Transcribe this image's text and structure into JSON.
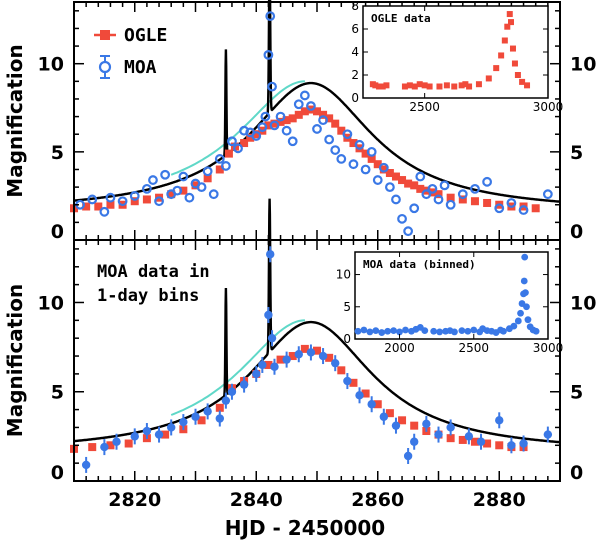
{
  "colors": {
    "ogle": "#f04a3a",
    "moa": "#3a78e6",
    "model": "#000000",
    "alt_model": "#5fd8c8"
  },
  "xlabel": "HJD - 2450000",
  "ylabel": "Magnification",
  "legend": {
    "ogle": "OGLE",
    "moa": "MOA"
  },
  "panel_text_line1": "MOA data in",
  "panel_text_line2": "1-day bins",
  "chart_data": [
    {
      "type": "scatter",
      "panel": "top",
      "xlim": [
        2810,
        2890
      ],
      "ylim": [
        0,
        13.5
      ],
      "x_ticks": [
        2820,
        2840,
        2860,
        2880
      ],
      "y_ticks": [
        0,
        5,
        10
      ],
      "ylabel": "Magnification",
      "legend": [
        "OGLE",
        "MOA"
      ],
      "series": [
        {
          "name": "OGLE",
          "points": [
            [
              2810,
              1.8
            ],
            [
              2812,
              1.9
            ],
            [
              2814,
              1.9
            ],
            [
              2816,
              2.0
            ],
            [
              2818,
              2.0
            ],
            [
              2820,
              2.2
            ],
            [
              2822,
              2.3
            ],
            [
              2824,
              2.4
            ],
            [
              2826,
              2.6
            ],
            [
              2828,
              2.8
            ],
            [
              2830,
              3.1
            ],
            [
              2832,
              3.5
            ],
            [
              2834,
              4.0
            ],
            [
              2835.5,
              4.9
            ],
            [
              2836.5,
              5.3
            ],
            [
              2838,
              5.5
            ],
            [
              2839,
              5.8
            ],
            [
              2840,
              6.0
            ],
            [
              2841,
              6.2
            ],
            [
              2842,
              6.5
            ],
            [
              2843,
              6.6
            ],
            [
              2844,
              6.7
            ],
            [
              2845,
              6.8
            ],
            [
              2846,
              6.9
            ],
            [
              2847,
              7.1
            ],
            [
              2848,
              7.3
            ],
            [
              2849,
              7.4
            ],
            [
              2850,
              7.3
            ],
            [
              2851,
              7.1
            ],
            [
              2852,
              6.9
            ],
            [
              2853,
              6.6
            ],
            [
              2854,
              6.2
            ],
            [
              2855,
              5.8
            ],
            [
              2856,
              5.5
            ],
            [
              2857,
              5.2
            ],
            [
              2858,
              4.9
            ],
            [
              2859,
              4.6
            ],
            [
              2860,
              4.3
            ],
            [
              2861,
              4.0
            ],
            [
              2862,
              3.8
            ],
            [
              2863,
              3.6
            ],
            [
              2864,
              3.4
            ],
            [
              2865,
              3.2
            ],
            [
              2866,
              3.1
            ],
            [
              2867,
              2.9
            ],
            [
              2868,
              2.8
            ],
            [
              2869,
              2.7
            ],
            [
              2870,
              2.6
            ],
            [
              2872,
              2.4
            ],
            [
              2874,
              2.3
            ],
            [
              2876,
              2.2
            ],
            [
              2878,
              2.1
            ],
            [
              2880,
              2.0
            ],
            [
              2882,
              1.9
            ],
            [
              2884,
              1.9
            ],
            [
              2886,
              1.8
            ]
          ]
        },
        {
          "name": "MOA",
          "points": [
            [
              2811,
              2.0
            ],
            [
              2813,
              2.3
            ],
            [
              2815,
              1.6
            ],
            [
              2816,
              2.4
            ],
            [
              2818,
              2.2
            ],
            [
              2820,
              2.5
            ],
            [
              2822,
              2.9
            ],
            [
              2823,
              3.4
            ],
            [
              2824,
              2.2
            ],
            [
              2825,
              3.7
            ],
            [
              2826,
              2.6
            ],
            [
              2827,
              2.8
            ],
            [
              2828,
              3.6
            ],
            [
              2829,
              2.4
            ],
            [
              2830,
              3.2
            ],
            [
              2831,
              3.0
            ],
            [
              2832,
              3.9
            ],
            [
              2833,
              2.6
            ],
            [
              2834,
              4.6
            ],
            [
              2835,
              4.2
            ],
            [
              2836,
              5.6
            ],
            [
              2837,
              5.2
            ],
            [
              2838,
              6.2
            ],
            [
              2839,
              6.1
            ],
            [
              2840,
              5.9
            ],
            [
              2841,
              6.4
            ],
            [
              2841.5,
              7.0
            ],
            [
              2842,
              10.5
            ],
            [
              2842.3,
              12.7
            ],
            [
              2842.6,
              8.7
            ],
            [
              2843,
              6.5
            ],
            [
              2844,
              7.0
            ],
            [
              2845,
              6.2
            ],
            [
              2846,
              5.6
            ],
            [
              2847,
              7.7
            ],
            [
              2848,
              8.2
            ],
            [
              2849,
              7.6
            ],
            [
              2850,
              6.3
            ],
            [
              2851,
              6.8
            ],
            [
              2852,
              5.7
            ],
            [
              2853,
              5.1
            ],
            [
              2854,
              4.6
            ],
            [
              2855,
              6.0
            ],
            [
              2856,
              4.3
            ],
            [
              2857,
              5.4
            ],
            [
              2858,
              4.0
            ],
            [
              2859,
              5.0
            ],
            [
              2860,
              3.4
            ],
            [
              2861,
              4.1
            ],
            [
              2862,
              3.0
            ],
            [
              2863,
              2.3
            ],
            [
              2864,
              1.2
            ],
            [
              2865,
              0.5
            ],
            [
              2866,
              1.8
            ],
            [
              2867,
              3.6
            ],
            [
              2868,
              2.6
            ],
            [
              2869,
              2.9
            ],
            [
              2870,
              2.3
            ],
            [
              2871,
              3.1
            ],
            [
              2872,
              2.0
            ],
            [
              2874,
              2.6
            ],
            [
              2876,
              2.9
            ],
            [
              2878,
              3.3
            ],
            [
              2880,
              1.8
            ],
            [
              2882,
              2.1
            ],
            [
              2884,
              1.7
            ],
            [
              2888,
              2.6
            ]
          ]
        }
      ],
      "inset": {
        "title": "OGLE data",
        "xlim": [
          2250,
          3000
        ],
        "ylim": [
          0,
          8
        ],
        "x_ticks": [
          2500,
          3000
        ],
        "y_ticks": [
          0,
          2,
          4,
          6,
          8
        ],
        "points": [
          [
            2290,
            1.2
          ],
          [
            2300,
            1.1
          ],
          [
            2315,
            1.0
          ],
          [
            2330,
            1.0
          ],
          [
            2345,
            1.1
          ],
          [
            2420,
            1.0
          ],
          [
            2440,
            1.1
          ],
          [
            2460,
            1.0
          ],
          [
            2480,
            1.2
          ],
          [
            2500,
            1.1
          ],
          [
            2520,
            1.0
          ],
          [
            2560,
            1.0
          ],
          [
            2590,
            1.1
          ],
          [
            2620,
            1.0
          ],
          [
            2650,
            1.1
          ],
          [
            2665,
            1.2
          ],
          [
            2680,
            1.0
          ],
          [
            2720,
            1.2
          ],
          [
            2760,
            1.7
          ],
          [
            2790,
            2.6
          ],
          [
            2810,
            3.7
          ],
          [
            2825,
            5.0
          ],
          [
            2835,
            6.2
          ],
          [
            2845,
            7.3
          ],
          [
            2850,
            6.6
          ],
          [
            2858,
            4.3
          ],
          [
            2866,
            3.0
          ],
          [
            2878,
            2.0
          ],
          [
            2895,
            1.4
          ],
          [
            2915,
            1.1
          ]
        ]
      }
    },
    {
      "type": "scatter",
      "panel": "bottom",
      "xlim": [
        2810,
        2890
      ],
      "ylim": [
        0,
        13.5
      ],
      "x_ticks": [
        2820,
        2840,
        2860,
        2880
      ],
      "y_ticks": [
        0,
        5,
        10
      ],
      "xlabel": "HJD - 2450000",
      "ylabel": "Magnification",
      "series": [
        {
          "name": "OGLE",
          "points": [
            [
              2810,
              1.8
            ],
            [
              2813,
              1.9
            ],
            [
              2816,
              2.0
            ],
            [
              2819,
              2.1
            ],
            [
              2822,
              2.4
            ],
            [
              2825,
              2.6
            ],
            [
              2828,
              2.9
            ],
            [
              2831,
              3.4
            ],
            [
              2834,
              4.1
            ],
            [
              2836,
              5.2
            ],
            [
              2838,
              5.6
            ],
            [
              2840,
              6.0
            ],
            [
              2842,
              6.5
            ],
            [
              2844,
              6.8
            ],
            [
              2846,
              7.0
            ],
            [
              2848,
              7.4
            ],
            [
              2850,
              7.3
            ],
            [
              2852,
              6.9
            ],
            [
              2854,
              6.2
            ],
            [
              2856,
              5.5
            ],
            [
              2858,
              4.9
            ],
            [
              2860,
              4.3
            ],
            [
              2862,
              3.8
            ],
            [
              2864,
              3.4
            ],
            [
              2866,
              3.1
            ],
            [
              2868,
              2.8
            ],
            [
              2870,
              2.6
            ],
            [
              2872,
              2.4
            ],
            [
              2874,
              2.3
            ],
            [
              2876,
              2.2
            ],
            [
              2878,
              2.1
            ],
            [
              2880,
              2.0
            ],
            [
              2882,
              1.9
            ],
            [
              2884,
              1.9
            ]
          ]
        },
        {
          "name": "MOA",
          "points": [
            [
              2812,
              0.9
            ],
            [
              2815,
              1.9
            ],
            [
              2817,
              2.2
            ],
            [
              2820,
              2.5
            ],
            [
              2822,
              2.8
            ],
            [
              2824,
              2.6
            ],
            [
              2826,
              3.0
            ],
            [
              2828,
              3.3
            ],
            [
              2830,
              3.6
            ],
            [
              2832,
              3.9
            ],
            [
              2834,
              3.5
            ],
            [
              2835,
              4.5
            ],
            [
              2836,
              5.0
            ],
            [
              2838,
              5.4
            ],
            [
              2840,
              6.0
            ],
            [
              2841,
              6.5
            ],
            [
              2842,
              9.3
            ],
            [
              2842.3,
              12.7
            ],
            [
              2842.6,
              8.0
            ],
            [
              2843,
              6.4
            ],
            [
              2845,
              6.8
            ],
            [
              2847,
              7.1
            ],
            [
              2849,
              7.2
            ],
            [
              2851,
              7.0
            ],
            [
              2853,
              6.6
            ],
            [
              2855,
              5.6
            ],
            [
              2857,
              4.8
            ],
            [
              2859,
              4.3
            ],
            [
              2861,
              3.6
            ],
            [
              2863,
              3.1
            ],
            [
              2865,
              1.4
            ],
            [
              2866,
              2.2
            ],
            [
              2868,
              3.2
            ],
            [
              2870,
              2.6
            ],
            [
              2872,
              3.0
            ],
            [
              2875,
              2.5
            ],
            [
              2877,
              2.2
            ],
            [
              2880,
              3.4
            ],
            [
              2882,
              2.0
            ],
            [
              2884,
              2.1
            ],
            [
              2888,
              2.6
            ]
          ]
        }
      ],
      "inset": {
        "title": "MOA data (binned)",
        "xlim": [
          1700,
          3000
        ],
        "ylim": [
          0,
          13.5
        ],
        "x_ticks": [
          2000,
          2500,
          3000
        ],
        "y_ticks": [
          0,
          5,
          10
        ],
        "points": [
          [
            1720,
            1.2
          ],
          [
            1760,
            1.4
          ],
          [
            1800,
            1.1
          ],
          [
            1840,
            1.3
          ],
          [
            1880,
            1.0
          ],
          [
            1920,
            1.2
          ],
          [
            1960,
            1.3
          ],
          [
            2000,
            1.1
          ],
          [
            2040,
            1.4
          ],
          [
            2080,
            1.2
          ],
          [
            2110,
            1.5
          ],
          [
            2140,
            1.8
          ],
          [
            2170,
            1.3
          ],
          [
            2230,
            1.2
          ],
          [
            2270,
            1.1
          ],
          [
            2310,
            1.2
          ],
          [
            2340,
            1.3
          ],
          [
            2370,
            1.1
          ],
          [
            2420,
            1.3
          ],
          [
            2460,
            1.2
          ],
          [
            2500,
            1.4
          ],
          [
            2540,
            1.1
          ],
          [
            2560,
            1.6
          ],
          [
            2590,
            1.3
          ],
          [
            2620,
            1.2
          ],
          [
            2650,
            1.0
          ],
          [
            2680,
            1.4
          ],
          [
            2700,
            1.2
          ],
          [
            2740,
            1.6
          ],
          [
            2770,
            2.0
          ],
          [
            2800,
            2.8
          ],
          [
            2815,
            4.0
          ],
          [
            2825,
            5.5
          ],
          [
            2835,
            7.0
          ],
          [
            2840,
            9.0
          ],
          [
            2843,
            12.7
          ],
          [
            2848,
            7.2
          ],
          [
            2855,
            5.0
          ],
          [
            2865,
            3.0
          ],
          [
            2880,
            1.9
          ],
          [
            2900,
            1.4
          ],
          [
            2920,
            1.2
          ]
        ]
      }
    }
  ]
}
